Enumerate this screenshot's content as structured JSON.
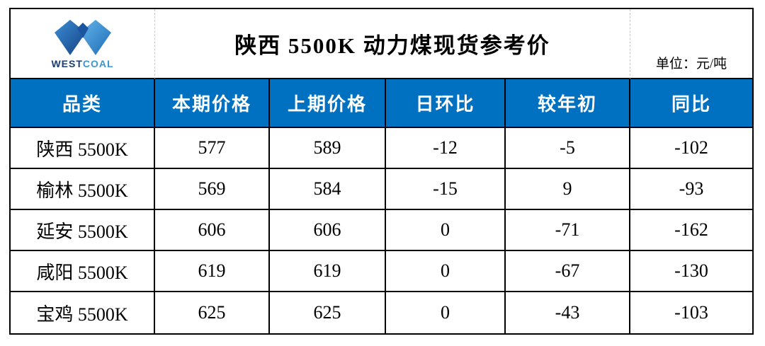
{
  "brand": {
    "name_west": "WEST",
    "name_coal": "COAL",
    "logo_icon": "westcoal-w-logo"
  },
  "colors": {
    "header_bg": "#0070C0",
    "header_text": "#FFFFFF",
    "border": "#000000",
    "logo_blue_dark": "#16407E",
    "logo_blue_mid": "#1B55A0",
    "logo_blue_light": "#63B5EC",
    "brand_west_text": "#1C3E76",
    "brand_coal_text": "#3C96D2"
  },
  "chart_data": {
    "type": "table",
    "title": "陕西 5500K 动力煤现货参考价",
    "unit": "单位：元/吨",
    "columns": [
      "品类",
      "本期价格",
      "上期价格",
      "日环比",
      "较年初",
      "同比"
    ],
    "rows": [
      [
        "陕西 5500K",
        "577",
        "589",
        "-12",
        "-5",
        "-102"
      ],
      [
        "榆林 5500K",
        "569",
        "584",
        "-15",
        "9",
        "-93"
      ],
      [
        "延安 5500K",
        "606",
        "606",
        "0",
        "-71",
        "-162"
      ],
      [
        "咸阳 5500K",
        "619",
        "619",
        "0",
        "-67",
        "-130"
      ],
      [
        "宝鸡 5500K",
        "625",
        "625",
        "0",
        "-43",
        "-103"
      ]
    ]
  }
}
